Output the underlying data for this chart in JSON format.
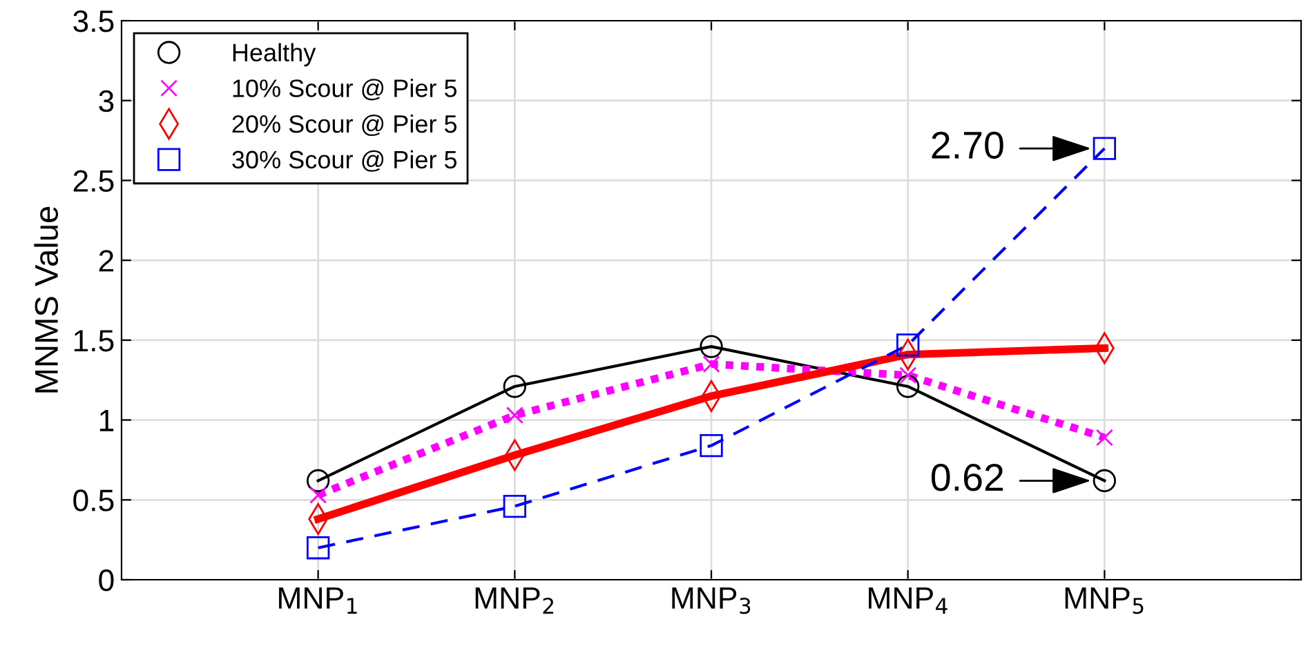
{
  "chart_data": {
    "type": "line",
    "ylabel": "MNMS Value",
    "categories": [
      "MNP$_{1}$",
      "MNP$_{2}$",
      "MNP$_{3}$",
      "MNP$_{4}$",
      "MNP$_{5}$"
    ],
    "series": [
      {
        "name": "Healthy",
        "color": "#000000",
        "marker": "circle",
        "line_style": "solid",
        "values": [
          0.62,
          1.21,
          1.46,
          1.21,
          0.62
        ]
      },
      {
        "name": "10% Scour @ Pier 5",
        "color": "#ff00ff",
        "marker": "cross",
        "line_style": "dotted",
        "values": [
          0.53,
          1.03,
          1.35,
          1.28,
          0.89
        ]
      },
      {
        "name": "20% Scour @ Pier 5",
        "color": "#ff0000",
        "marker": "diamond",
        "line_style": "solid",
        "values": [
          0.38,
          0.78,
          1.15,
          1.41,
          1.45
        ]
      },
      {
        "name": "30% Scour @ Pier 5",
        "color": "#0000ff",
        "marker": "square",
        "line_style": "dashed",
        "values": [
          0.2,
          0.46,
          0.84,
          1.47,
          2.7
        ]
      }
    ],
    "ylim": [
      0,
      3.5
    ],
    "yticks": [
      0,
      0.5,
      1,
      1.5,
      2,
      2.5,
      3,
      3.5
    ],
    "grid": true,
    "legend": "top left",
    "annotations": [
      {
        "text": "2.70",
        "x": "MNP$_{5}$",
        "y": 2.7
      },
      {
        "text": "0.62",
        "x": "MNP$_{5}$",
        "y": 0.62
      }
    ]
  }
}
